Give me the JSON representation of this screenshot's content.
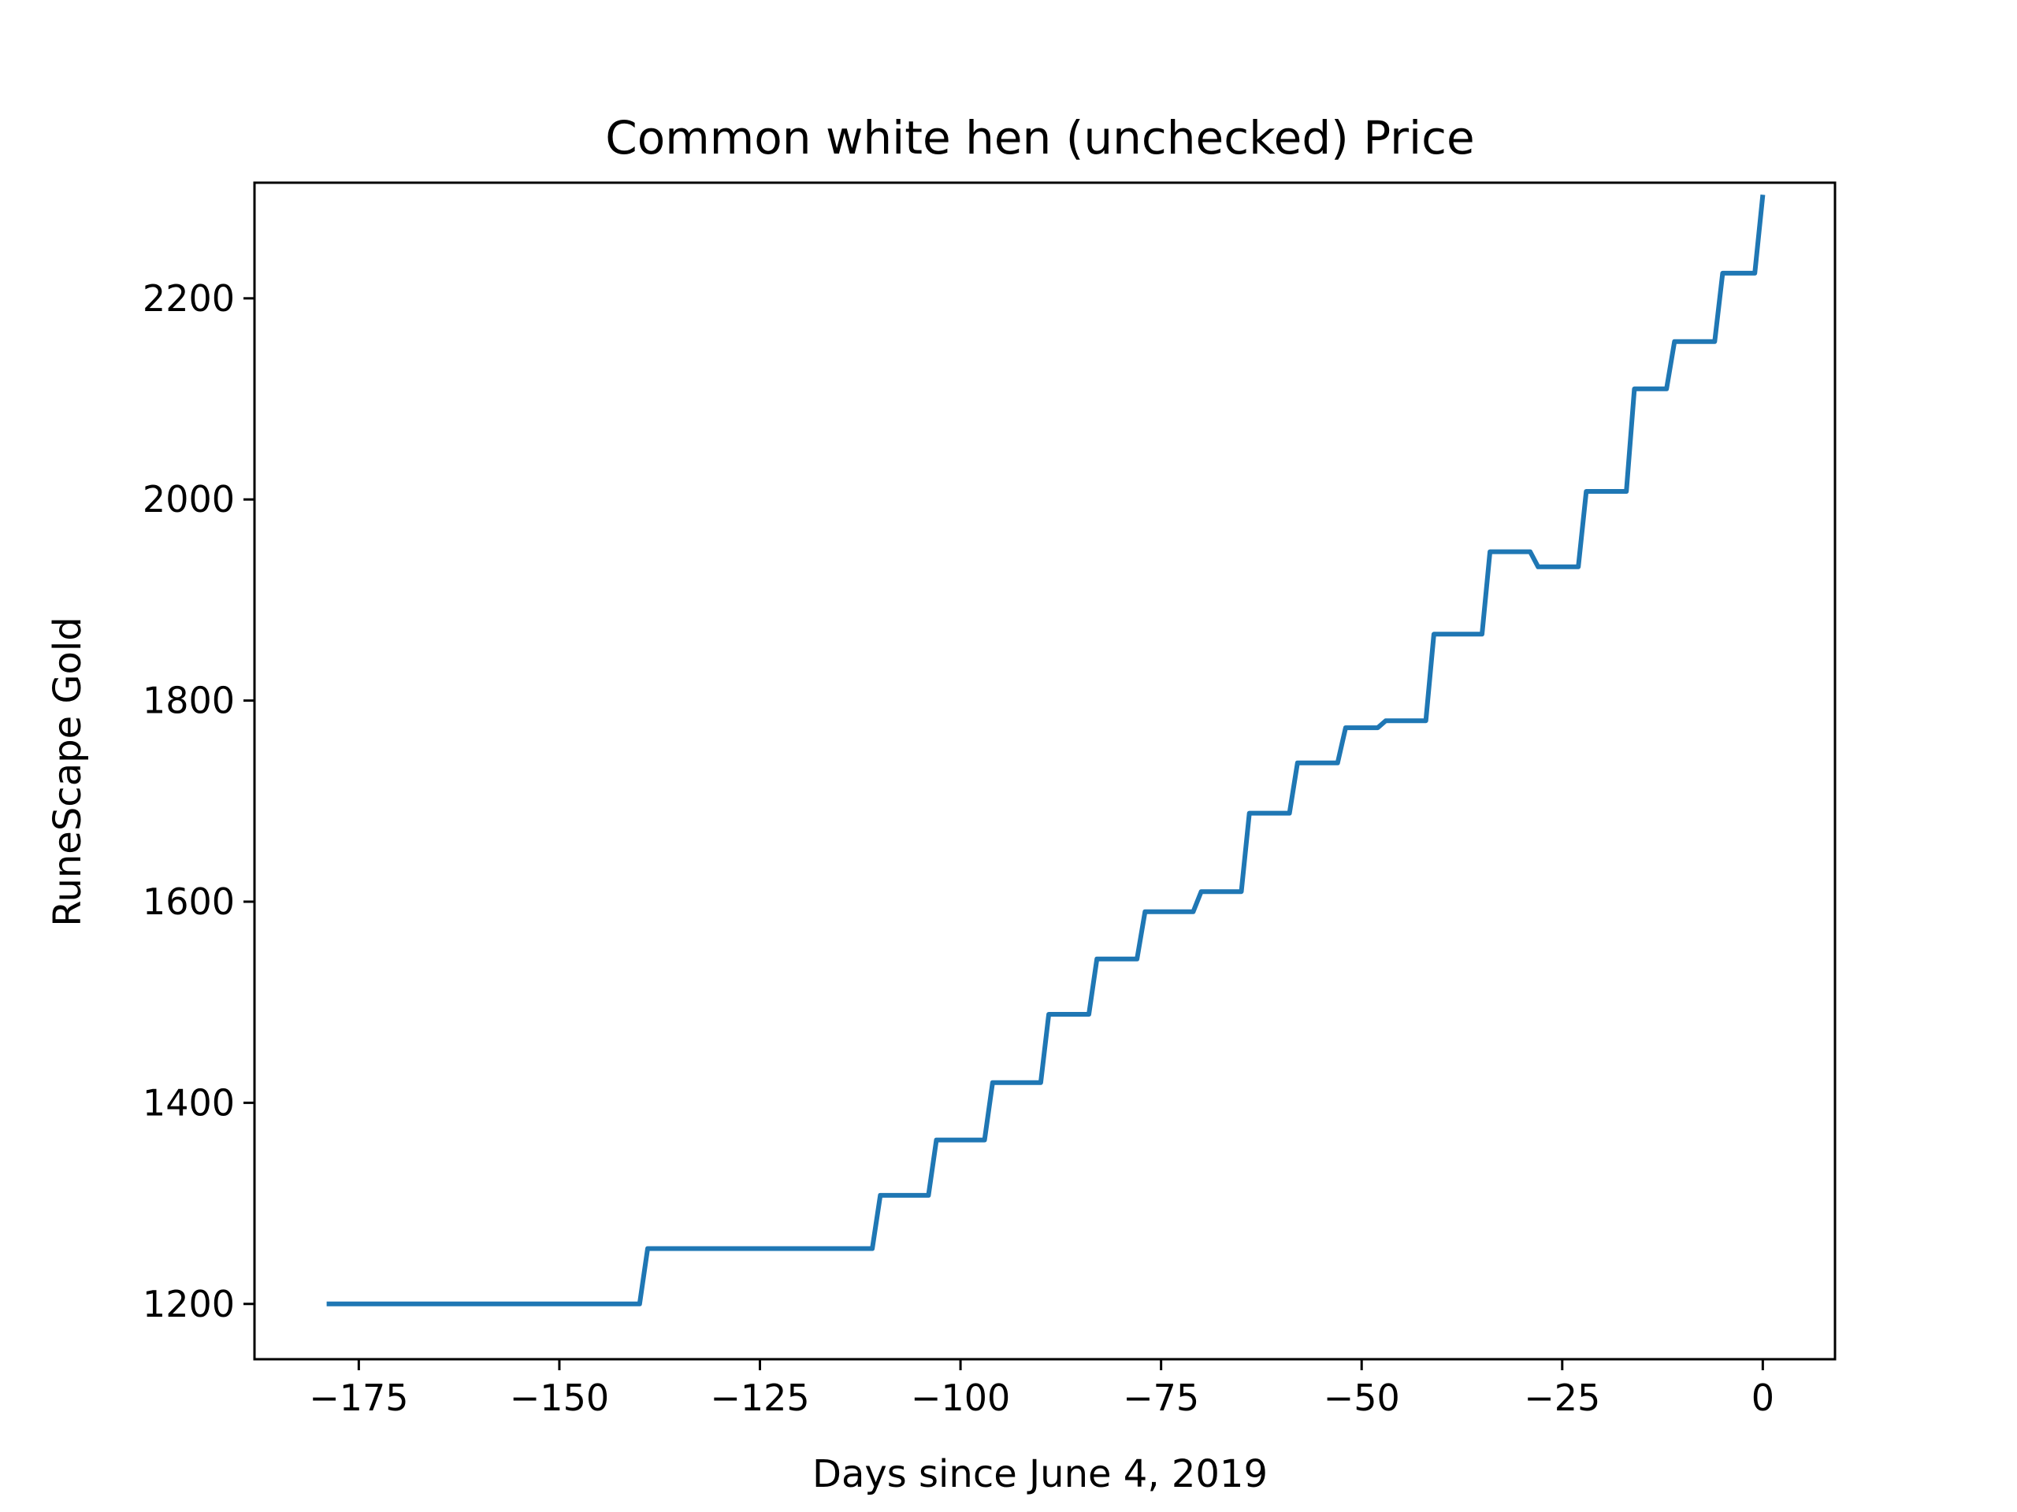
{
  "chart_data": {
    "type": "line",
    "title": "Common white hen (unchecked) Price",
    "xlabel": "Days since June 4, 2019",
    "ylabel": "RuneScape Gold",
    "xlim": [
      -188,
      9
    ],
    "ylim": [
      1145,
      2315
    ],
    "xticks": [
      -175,
      -150,
      -125,
      -100,
      -75,
      -50,
      -25,
      0
    ],
    "xtick_labels": [
      "−175",
      "−150",
      "−125",
      "−100",
      "−75",
      "−50",
      "−25",
      "0"
    ],
    "yticks": [
      1200,
      1400,
      1600,
      1800,
      2000,
      2200
    ],
    "ytick_labels": [
      "1200",
      "1400",
      "1600",
      "1800",
      "2000",
      "2200"
    ],
    "grid": false,
    "line_color": "#1f77b4",
    "series": [
      {
        "name": "Price",
        "x": [
          -179,
          -140,
          -139,
          -111,
          -110,
          -104,
          -103,
          -97,
          -96,
          -90,
          -89,
          -84,
          -83,
          -78,
          -77,
          -71,
          -70,
          -65,
          -64,
          -59,
          -58,
          -53,
          -52,
          -48,
          -47,
          -42,
          -41,
          -35,
          -34,
          -29,
          -28,
          -23,
          -22,
          -17,
          -16,
          -12,
          -11,
          -6,
          -5,
          -1,
          0
        ],
        "y": [
          1200,
          1200,
          1255,
          1255,
          1308,
          1308,
          1363,
          1363,
          1420,
          1420,
          1488,
          1488,
          1543,
          1543,
          1590,
          1590,
          1610,
          1610,
          1688,
          1688,
          1738,
          1738,
          1773,
          1773,
          1780,
          1780,
          1866,
          1866,
          1948,
          1948,
          1933,
          1933,
          2008,
          2008,
          2110,
          2110,
          2157,
          2157,
          2225,
          2225,
          2303
        ]
      }
    ]
  }
}
